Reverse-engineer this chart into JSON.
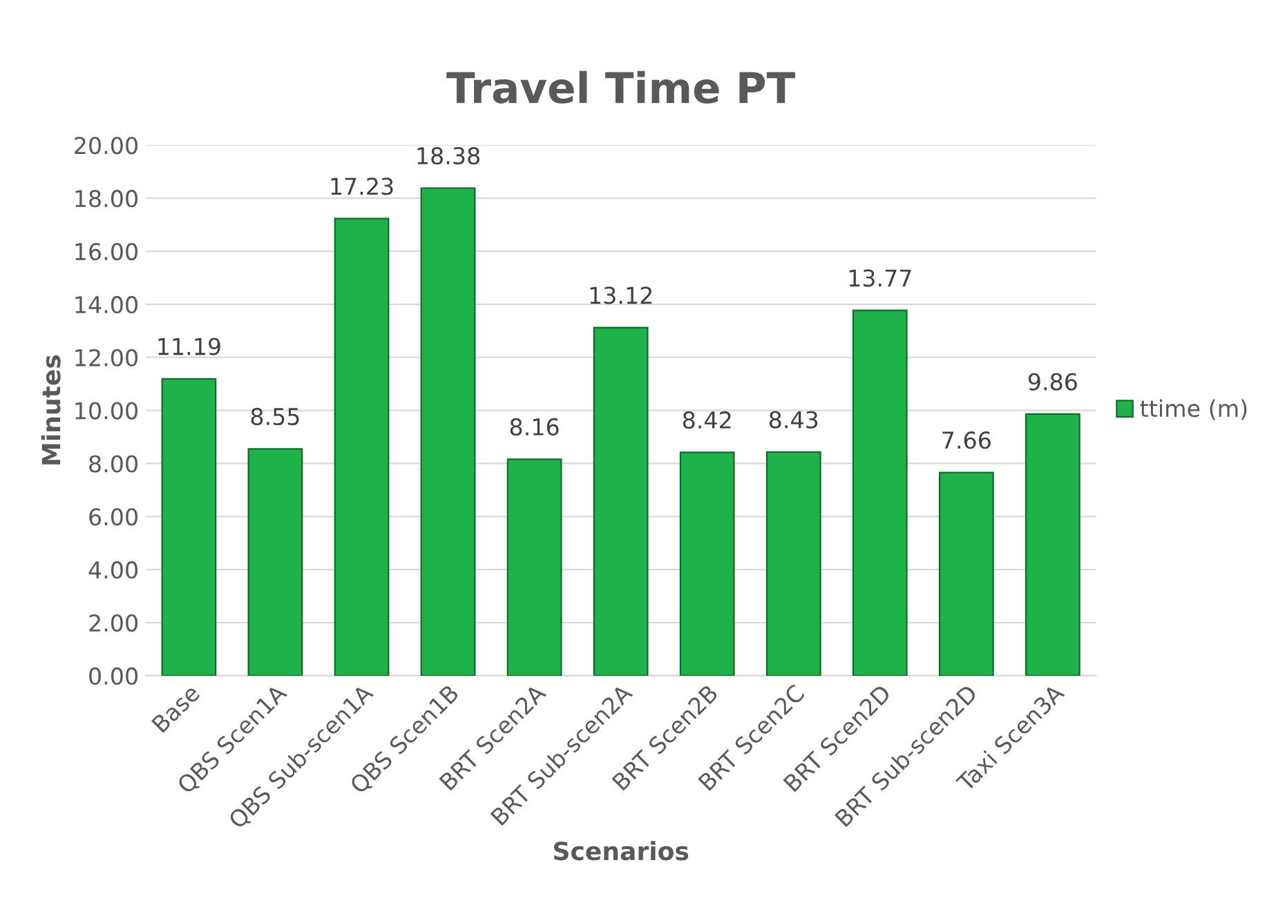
{
  "chart_data": {
    "type": "bar",
    "title": "Travel Time PT",
    "xlabel": "Scenarios",
    "ylabel": "Minutes",
    "categories": [
      "Base",
      "QBS Scen1A",
      "QBS Sub-scen1A",
      "QBS Scen1B",
      "BRT Scen2A",
      "BRT Sub-scen2A",
      "BRT Scen2B",
      "BRT Scen2C",
      "BRT Scen2D",
      "BRT Sub-scen2D",
      "Taxi Scen3A"
    ],
    "series": [
      {
        "name": "ttime (m)",
        "color": "#1fb24a",
        "values": [
          11.19,
          8.55,
          17.23,
          18.38,
          8.16,
          13.12,
          8.42,
          8.43,
          13.77,
          7.66,
          9.86
        ]
      }
    ],
    "ylim": [
      0,
      20
    ],
    "yticks": [
      {
        "value": 0,
        "label": "0.00"
      },
      {
        "value": 2,
        "label": "2.00"
      },
      {
        "value": 4,
        "label": "4.00"
      },
      {
        "value": 6,
        "label": "6.00"
      },
      {
        "value": 8,
        "label": "8.00"
      },
      {
        "value": 10,
        "label": "10.00"
      },
      {
        "value": 12,
        "label": "12.00"
      },
      {
        "value": 14,
        "label": "14.00"
      },
      {
        "value": 16,
        "label": "16.00"
      },
      {
        "value": 18,
        "label": "18.00"
      },
      {
        "value": 20,
        "label": "20.00"
      }
    ],
    "value_labels": [
      "11.19",
      "8.55",
      "17.23",
      "18.38",
      "8.16",
      "13.12",
      "8.42",
      "8.43",
      "13.77",
      "7.66",
      "9.86"
    ],
    "grid": "y",
    "legend": "right"
  }
}
